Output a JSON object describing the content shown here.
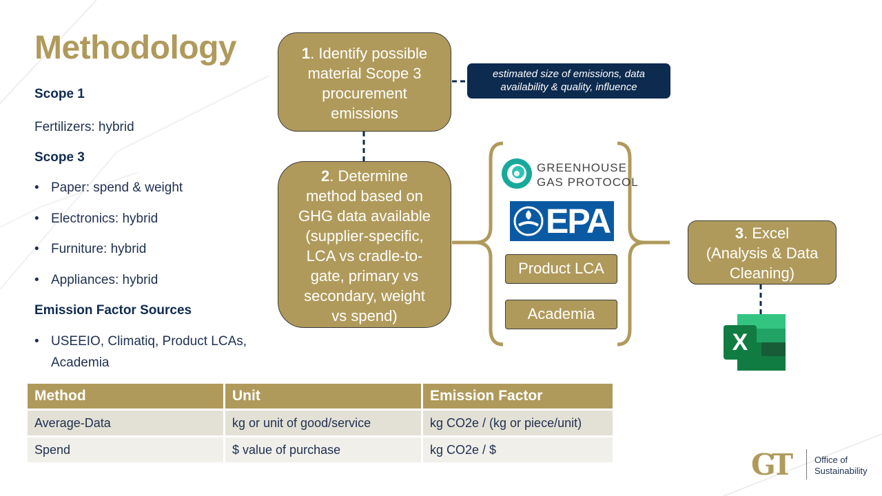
{
  "title": "Methodology",
  "left": {
    "scope1_heading": "Scope 1",
    "scope1_item": "Fertilizers: hybrid",
    "scope3_heading": "Scope 3",
    "scope3_items": [
      "Paper: spend & weight",
      "Electronics: hybrid",
      "Furniture: hybrid",
      "Appliances: hybrid"
    ],
    "ef_heading": "Emission Factor Sources",
    "ef_item_line1": "USEEIO, Climatiq, Product LCAs,",
    "ef_item_line2": "Academia"
  },
  "step1": {
    "num": "1",
    "lines": [
      ". Identify possible",
      "material Scope 3",
      "procurement",
      "emissions"
    ]
  },
  "note": {
    "line1": "estimated size of emissions, data",
    "line2": "availability & quality, influence"
  },
  "step2": {
    "num": "2",
    "lines": [
      ". Determine",
      "method based on",
      "GHG data available",
      "(supplier-specific,",
      "LCA vs cradle-to-",
      "gate, primary vs",
      "secondary, weight",
      "vs spend)"
    ]
  },
  "sources": {
    "ghg_line1": "GREENHOUSE",
    "ghg_line2": "GAS PROTOCOL",
    "epa": "EPA",
    "product_lca": "Product LCA",
    "academia": "Academia"
  },
  "step3": {
    "num": "3",
    "lines": [
      ". Excel",
      "(Analysis & Data",
      "Cleaning)"
    ]
  },
  "excel_letter": "X",
  "table": {
    "headers": [
      "Method",
      "Unit",
      "Emission Factor"
    ],
    "rows": [
      [
        "Average-Data",
        "kg or unit of good/service",
        "kg CO2e / (kg or piece/unit)"
      ],
      [
        "Spend",
        "$ value of purchase",
        "kg CO2e / $"
      ]
    ]
  },
  "footer": {
    "logo_letters": "GT",
    "office_line1": "Office of",
    "office_line2": "Sustainability"
  },
  "colors": {
    "gold": "#b09a5b",
    "navy": "#0d2a4f",
    "text": "#1e2f4f",
    "epa_blue": "#0a5aa3",
    "excel_green": "#1f7a45"
  }
}
